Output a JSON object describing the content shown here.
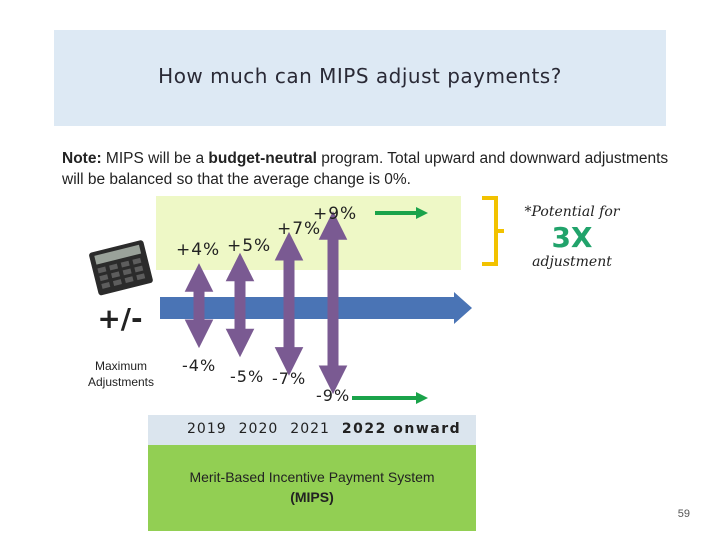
{
  "title": "How much can MIPS adjust payments?",
  "note": {
    "prefix": "Note:",
    "text_1": " MIPS will be a ",
    "emphasis": "budget-neutral",
    "text_2": " program. Total upward and downward adjustments will be balanced so that the average change is 0%."
  },
  "left_panel": {
    "symbol": "+/-",
    "caption": "Maximum Adjustments",
    "icon": "calculator-icon"
  },
  "callout": {
    "line1": "*Potential for",
    "multiplier": "3X",
    "line2": "adjustment",
    "multiplier_color": "#21a36b"
  },
  "chart_data": {
    "type": "diagram",
    "categories": [
      "2019",
      "2020",
      "2021",
      "2022 onward"
    ],
    "series": [
      {
        "values": [
          4,
          5,
          7,
          9
        ]
      },
      {
        "values": [
          -4,
          -5,
          -7,
          -9
        ]
      }
    ],
    "up_labels": [
      "+4%",
      "+5%",
      "+7%",
      "+9%"
    ],
    "down_labels": [
      "-4%",
      "-5%",
      "-7%",
      "-9%"
    ]
  },
  "bottom": {
    "line1": "Merit-Based Incentive Payment System",
    "line2": "(MIPS)"
  },
  "page_number": "59",
  "colors": {
    "title_band": "#dde9f4",
    "arrow": "#7a5a92",
    "timeline": "#4a74b5",
    "green_arrow": "#1aa34a",
    "bracket": "#f2c200",
    "upper_band": "#eef8c6",
    "lower_band": "#92cf53",
    "axis_band": "#dbe5ee"
  }
}
